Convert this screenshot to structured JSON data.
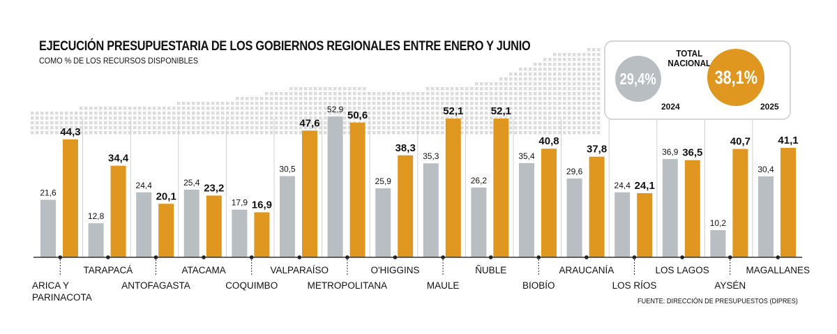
{
  "header": {
    "title": "EJECUCIÓN PRESUPUESTARIA DE LOS GOBIERNOS REGIONALES ENTRE ENERO Y JUNIO",
    "subtitle": "COMO % DE LOS RECURSOS DISPONIBLES"
  },
  "total": {
    "label_line1": "TOTAL",
    "label_line2": "NACIONAL",
    "value_2024": "29,4%",
    "value_2025": "38,1%",
    "year_2024": "2024",
    "year_2025": "2025"
  },
  "source": "FUENTE: DIRECCIÓN DE PRESUPUESTOS (DIPRES)",
  "colors": {
    "series_2024": "#b9bec3",
    "series_2025": "#e0971f",
    "map_dots": "#dcdcdc"
  },
  "chart_data": {
    "type": "bar",
    "title": "EJECUCIÓN PRESUPUESTARIA DE LOS GOBIERNOS REGIONALES ENTRE ENERO Y JUNIO",
    "subtitle": "COMO % DE LOS RECURSOS DISPONIBLES",
    "ylim": [
      0,
      55
    ],
    "categories": [
      "ARICA Y PARINACOTA",
      "TARAPACÁ",
      "ANTOFAGASTA",
      "ATACAMA",
      "COQUIMBO",
      "VALPARAÍSO",
      "METROPOLITANA",
      "O'HIGGINS",
      "MAULE",
      "ÑUBLE",
      "BIOBÍO",
      "ARAUCANÍA",
      "LOS RÍOS",
      "LOS LAGOS",
      "AYSÉN",
      "MAGALLANES"
    ],
    "category_lines": [
      [
        "ARICA Y",
        "PARINACOTA"
      ],
      [
        "TARAPACÁ"
      ],
      [
        "ANTOFAGASTA"
      ],
      [
        "ATACAMA"
      ],
      [
        "COQUIMBO"
      ],
      [
        "VALPARAÍSO"
      ],
      [
        "METROPOLITANA"
      ],
      [
        "O'HIGGINS"
      ],
      [
        "MAULE"
      ],
      [
        "ÑUBLE"
      ],
      [
        "BIOBÍO"
      ],
      [
        "ARAUCANÍA"
      ],
      [
        "LOS RÍOS"
      ],
      [
        "LOS LAGOS"
      ],
      [
        "AYSÉN"
      ],
      [
        "MAGALLANES"
      ]
    ],
    "series": [
      {
        "values": [
          21.6,
          12.8,
          24.4,
          25.4,
          17.9,
          30.5,
          52.9,
          25.9,
          35.3,
          26.2,
          35.4,
          29.6,
          24.4,
          36.9,
          10.2,
          30.4
        ],
        "labels": [
          "21,6",
          "12,8",
          "24,4",
          "25,4",
          "17,9",
          "30,5",
          "52,9",
          "25,9",
          "35,3",
          "26,2",
          "35,4",
          "29,6",
          "24,4",
          "36,9",
          "10,2",
          "30,4"
        ]
      },
      {
        "values": [
          44.3,
          34.4,
          20.1,
          23.2,
          16.9,
          47.6,
          50.6,
          38.3,
          52.1,
          52.1,
          40.8,
          37.8,
          24.1,
          36.5,
          40.7,
          41.1
        ],
        "labels": [
          "44,3",
          "34,4",
          "20,1",
          "23,2",
          "16,9",
          "47,6",
          "50,6",
          "38,3",
          "52,1",
          "52,1",
          "40,8",
          "37,8",
          "24,1",
          "36,5",
          "40,7",
          "41,1"
        ]
      }
    ],
    "grid": false,
    "legend": "none"
  }
}
